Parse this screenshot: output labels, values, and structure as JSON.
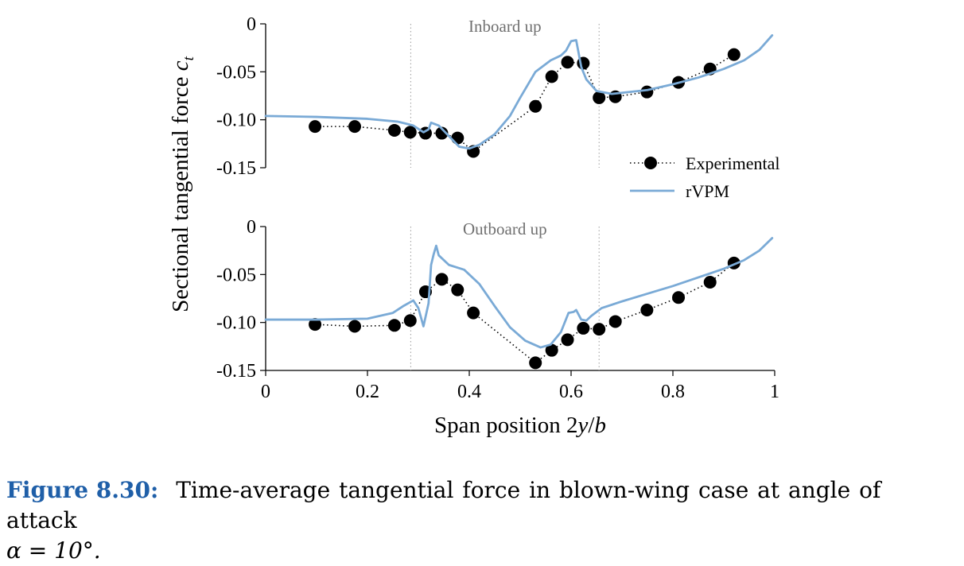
{
  "chart_data": [
    {
      "type": "line",
      "title": "Inboard up",
      "xlim": [
        0,
        1
      ],
      "ylim": [
        -0.15,
        0
      ],
      "yticks": [
        "0",
        "-0.05",
        "-0.10",
        "-0.15"
      ],
      "vlines_x": [
        0.285,
        0.655
      ],
      "series": [
        {
          "name": "Experimental",
          "style": "dotted-markers",
          "color": "#000000",
          "x": [
            0.097,
            0.175,
            0.253,
            0.284,
            0.314,
            0.346,
            0.377,
            0.408,
            0.53,
            0.562,
            0.593,
            0.624,
            0.655,
            0.687,
            0.749,
            0.811,
            0.873,
            0.92
          ],
          "y": [
            -0.107,
            -0.107,
            -0.111,
            -0.113,
            -0.114,
            -0.114,
            -0.119,
            -0.133,
            -0.086,
            -0.055,
            -0.04,
            -0.041,
            -0.077,
            -0.076,
            -0.071,
            -0.061,
            -0.047,
            -0.032
          ]
        },
        {
          "name": "rVPM",
          "style": "solid",
          "color": "#7aaad6",
          "x": [
            0.0,
            0.1,
            0.2,
            0.26,
            0.29,
            0.31,
            0.32,
            0.325,
            0.34,
            0.36,
            0.38,
            0.4,
            0.42,
            0.45,
            0.48,
            0.5,
            0.53,
            0.56,
            0.58,
            0.59,
            0.6,
            0.61,
            0.62,
            0.63,
            0.65,
            0.68,
            0.75,
            0.8,
            0.85,
            0.9,
            0.94,
            0.97,
            0.995
          ],
          "y": [
            -0.096,
            -0.097,
            -0.099,
            -0.102,
            -0.106,
            -0.113,
            -0.11,
            -0.103,
            -0.106,
            -0.117,
            -0.128,
            -0.13,
            -0.126,
            -0.115,
            -0.096,
            -0.077,
            -0.05,
            -0.038,
            -0.033,
            -0.028,
            -0.018,
            -0.017,
            -0.045,
            -0.058,
            -0.07,
            -0.073,
            -0.069,
            -0.063,
            -0.056,
            -0.047,
            -0.038,
            -0.027,
            -0.012
          ]
        }
      ]
    },
    {
      "type": "line",
      "title": "Outboard up",
      "xlim": [
        0,
        1
      ],
      "ylim": [
        -0.15,
        0
      ],
      "yticks": [
        "0",
        "-0.05",
        "-0.10",
        "-0.15"
      ],
      "xticks": [
        "0",
        "0.2",
        "0.4",
        "0.6",
        "0.8",
        "1"
      ],
      "vlines_x": [
        0.285,
        0.655
      ],
      "series": [
        {
          "name": "Experimental",
          "style": "dotted-markers",
          "color": "#000000",
          "x": [
            0.097,
            0.175,
            0.253,
            0.284,
            0.314,
            0.346,
            0.377,
            0.408,
            0.53,
            0.562,
            0.593,
            0.624,
            0.655,
            0.687,
            0.749,
            0.811,
            0.873,
            0.92
          ],
          "y": [
            -0.102,
            -0.104,
            -0.103,
            -0.098,
            -0.068,
            -0.055,
            -0.066,
            -0.09,
            -0.142,
            -0.129,
            -0.118,
            -0.106,
            -0.107,
            -0.099,
            -0.087,
            -0.074,
            -0.058,
            -0.038
          ]
        },
        {
          "name": "rVPM",
          "style": "solid",
          "color": "#7aaad6",
          "x": [
            0.0,
            0.1,
            0.2,
            0.25,
            0.27,
            0.29,
            0.3,
            0.31,
            0.32,
            0.325,
            0.33,
            0.335,
            0.34,
            0.36,
            0.39,
            0.42,
            0.45,
            0.48,
            0.51,
            0.54,
            0.56,
            0.58,
            0.595,
            0.605,
            0.61,
            0.62,
            0.63,
            0.64,
            0.66,
            0.7,
            0.75,
            0.8,
            0.85,
            0.9,
            0.94,
            0.97,
            0.995
          ],
          "y": [
            -0.097,
            -0.097,
            -0.096,
            -0.09,
            -0.083,
            -0.077,
            -0.085,
            -0.104,
            -0.08,
            -0.04,
            -0.029,
            -0.02,
            -0.03,
            -0.04,
            -0.045,
            -0.06,
            -0.083,
            -0.105,
            -0.119,
            -0.126,
            -0.123,
            -0.11,
            -0.09,
            -0.089,
            -0.087,
            -0.097,
            -0.098,
            -0.093,
            -0.085,
            -0.078,
            -0.07,
            -0.062,
            -0.053,
            -0.044,
            -0.035,
            -0.025,
            -0.012
          ]
        }
      ]
    }
  ],
  "ylabel": "Sectional tangential force c_t",
  "xlabel": "Span position 2y/b",
  "legend": [
    "Experimental",
    "rVPM"
  ],
  "caption": {
    "label": "Figure 8.30:",
    "text": "Time-average tangential force in blown-wing case at angle of attack",
    "equation": "α = 10°."
  }
}
